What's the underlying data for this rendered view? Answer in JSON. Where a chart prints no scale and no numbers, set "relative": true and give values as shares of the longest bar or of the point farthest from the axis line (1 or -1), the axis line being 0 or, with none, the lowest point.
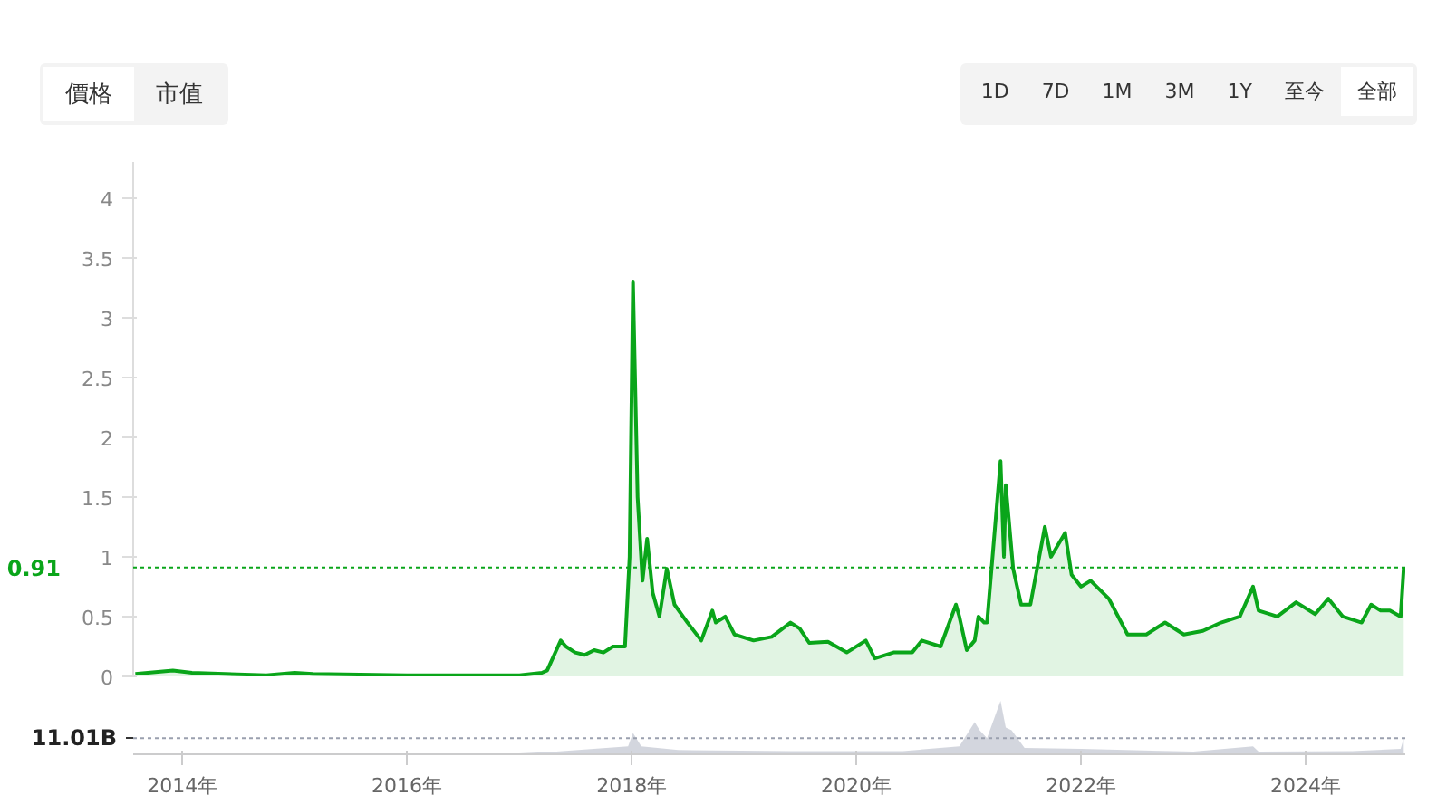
{
  "chart_data": [
    {
      "type": "area",
      "color": "#0aa51a",
      "annotations": [
        "價格",
        "市值",
        "1D",
        "7D",
        "1M",
        "3M",
        "1Y",
        "至今",
        "全部"
      ],
      "x": [
        "2013-08",
        "2013-12",
        "2014-02",
        "2014-10",
        "2015-01",
        "2015-03",
        "2016-01",
        "2017-01",
        "2017-03-15",
        "2017-04",
        "2017-05-15",
        "2017-06",
        "2017-07",
        "2017-08",
        "2017-09",
        "2017-10",
        "2017-11",
        "2017-12-10",
        "2017-12-25",
        "2018-01-05",
        "2018-01-20",
        "2018-02-05",
        "2018-02-20",
        "2018-03-10",
        "2018-04-01",
        "2018-04-25",
        "2018-05-20",
        "2018-07",
        "2018-08-15",
        "2018-09-20",
        "2018-10",
        "2018-11",
        "2018-12",
        "2019-02",
        "2019-04",
        "2019-06",
        "2019-07",
        "2019-08",
        "2019-10",
        "2019-12",
        "2020-02",
        "2020-03",
        "2020-05",
        "2020-07",
        "2020-08",
        "2020-10",
        "2020-11-20",
        "2020-12",
        "2020-12-25",
        "2021-01-20",
        "2021-02-01",
        "2021-02-20",
        "2021-03",
        "2021-04-14",
        "2021-04-25",
        "2021-05-01",
        "2021-05-25",
        "2021-06-20",
        "2021-07-20",
        "2021-09-05",
        "2021-09-25",
        "2021-11-10",
        "2021-12",
        "2022-01",
        "2022-02",
        "2022-04",
        "2022-06",
        "2022-08",
        "2022-10",
        "2022-12",
        "2023-02",
        "2023-04",
        "2023-06",
        "2023-07-14",
        "2023-08",
        "2023-10",
        "2023-12",
        "2024-02",
        "2024-03-15",
        "2024-05",
        "2024-07",
        "2024-08",
        "2024-09",
        "2024-10",
        "2024-11-05",
        "2024-11-15"
      ],
      "values": [
        0.02,
        0.05,
        0.03,
        0.01,
        0.03,
        0.02,
        0.01,
        0.01,
        0.03,
        0.05,
        0.3,
        0.25,
        0.2,
        0.18,
        0.22,
        0.2,
        0.25,
        0.25,
        1.0,
        3.3,
        1.5,
        0.8,
        1.15,
        0.7,
        0.5,
        0.9,
        0.6,
        0.45,
        0.3,
        0.55,
        0.45,
        0.5,
        0.35,
        0.3,
        0.33,
        0.45,
        0.4,
        0.28,
        0.29,
        0.2,
        0.3,
        0.15,
        0.2,
        0.2,
        0.3,
        0.25,
        0.6,
        0.5,
        0.22,
        0.3,
        0.5,
        0.45,
        0.45,
        1.8,
        1.0,
        1.6,
        0.9,
        0.6,
        0.6,
        1.25,
        1.0,
        1.2,
        0.85,
        0.75,
        0.8,
        0.65,
        0.35,
        0.35,
        0.45,
        0.35,
        0.38,
        0.45,
        0.5,
        0.75,
        0.55,
        0.5,
        0.62,
        0.52,
        0.65,
        0.5,
        0.45,
        0.6,
        0.55,
        0.55,
        0.5,
        0.91
      ],
      "xlim": [
        "2013-07-25",
        "2024-11-20"
      ],
      "ylim": [
        0,
        4.3
      ],
      "yticks": [
        0,
        0.5,
        1,
        1.5,
        2,
        2.5,
        3,
        3.5,
        4
      ],
      "ref_lines": [
        {
          "axis": "y",
          "value": 0.91,
          "label": "0.91",
          "color": "#0aa51a",
          "line_style": "dotted"
        }
      ],
      "grid": false,
      "tick_labels": "y"
    },
    {
      "type": "area",
      "relative": true,
      "color": "#c8ccd6",
      "x": [
        "2013-08",
        "2016-12",
        "2017-05",
        "2017-12-20",
        "2018-01-05",
        "2018-02",
        "2018-06",
        "2019-06",
        "2020-06",
        "2020-12",
        "2021-01-20",
        "2021-02-05",
        "2021-03",
        "2021-04-14",
        "2021-05-01",
        "2021-05-20",
        "2021-07",
        "2022-01",
        "2023-01",
        "2023-07-14",
        "2023-08",
        "2024-06",
        "2024-11-05",
        "2024-11-15"
      ],
      "values": [
        0.01,
        0.01,
        0.05,
        0.15,
        0.4,
        0.15,
        0.08,
        0.06,
        0.06,
        0.15,
        0.6,
        0.45,
        0.3,
        1.0,
        0.5,
        0.45,
        0.12,
        0.1,
        0.05,
        0.15,
        0.05,
        0.06,
        0.1,
        0.3
      ],
      "xlim": [
        "2013-07-25",
        "2024-11-20"
      ],
      "xticks": [
        {
          "value": "2014-01-01",
          "label": "2014年"
        },
        {
          "value": "2016-01-01",
          "label": "2016年"
        },
        {
          "value": "2018-01-01",
          "label": "2018年"
        },
        {
          "value": "2020-01-01",
          "label": "2020年"
        },
        {
          "value": "2022-01-01",
          "label": "2022年"
        },
        {
          "value": "2024-01-01",
          "label": "2024年"
        }
      ],
      "ref_lines": [
        {
          "axis": "y",
          "value": 0.3,
          "label": "11.01B",
          "color": "#9aa0ae",
          "line_style": "dotted"
        }
      ],
      "grid": false,
      "tick_labels": "x"
    }
  ]
}
